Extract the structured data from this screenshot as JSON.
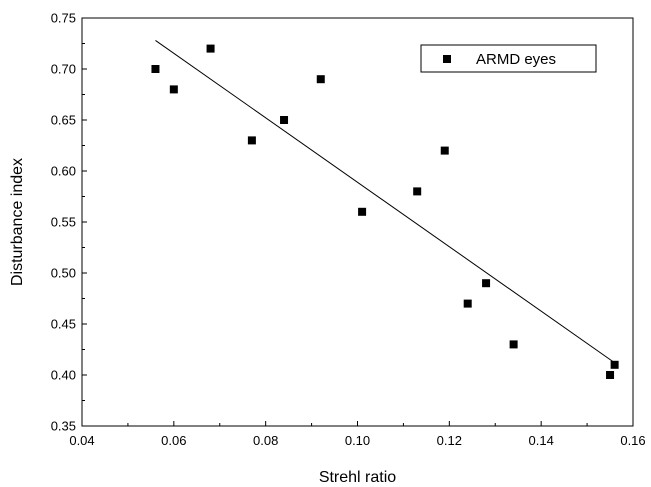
{
  "chart_data": {
    "type": "scatter",
    "title": "",
    "xlabel": "Strehl ratio",
    "ylabel": "Disturbance index",
    "xlim": [
      0.04,
      0.16
    ],
    "ylim": [
      0.35,
      0.75
    ],
    "xticks": [
      "0.04",
      "0.06",
      "0.08",
      "0.10",
      "0.12",
      "0.14",
      "0.16"
    ],
    "yticks": [
      "0.35",
      "0.40",
      "0.45",
      "0.50",
      "0.55",
      "0.60",
      "0.65",
      "0.70",
      "0.75"
    ],
    "grid": false,
    "legend_position": "top-right",
    "series": [
      {
        "name": "ARMD eyes",
        "marker": "square",
        "color": "#000000",
        "points": [
          {
            "x": 0.056,
            "y": 0.7
          },
          {
            "x": 0.06,
            "y": 0.68
          },
          {
            "x": 0.068,
            "y": 0.72
          },
          {
            "x": 0.077,
            "y": 0.63
          },
          {
            "x": 0.084,
            "y": 0.65
          },
          {
            "x": 0.092,
            "y": 0.69
          },
          {
            "x": 0.101,
            "y": 0.56
          },
          {
            "x": 0.113,
            "y": 0.58
          },
          {
            "x": 0.119,
            "y": 0.62
          },
          {
            "x": 0.124,
            "y": 0.47
          },
          {
            "x": 0.128,
            "y": 0.49
          },
          {
            "x": 0.134,
            "y": 0.43
          },
          {
            "x": 0.155,
            "y": 0.4
          },
          {
            "x": 0.156,
            "y": 0.41
          }
        ]
      }
    ],
    "fit_line": {
      "type": "linear",
      "color": "#000000",
      "points": [
        {
          "x": 0.056,
          "y": 0.728
        },
        {
          "x": 0.156,
          "y": 0.412
        }
      ]
    }
  }
}
